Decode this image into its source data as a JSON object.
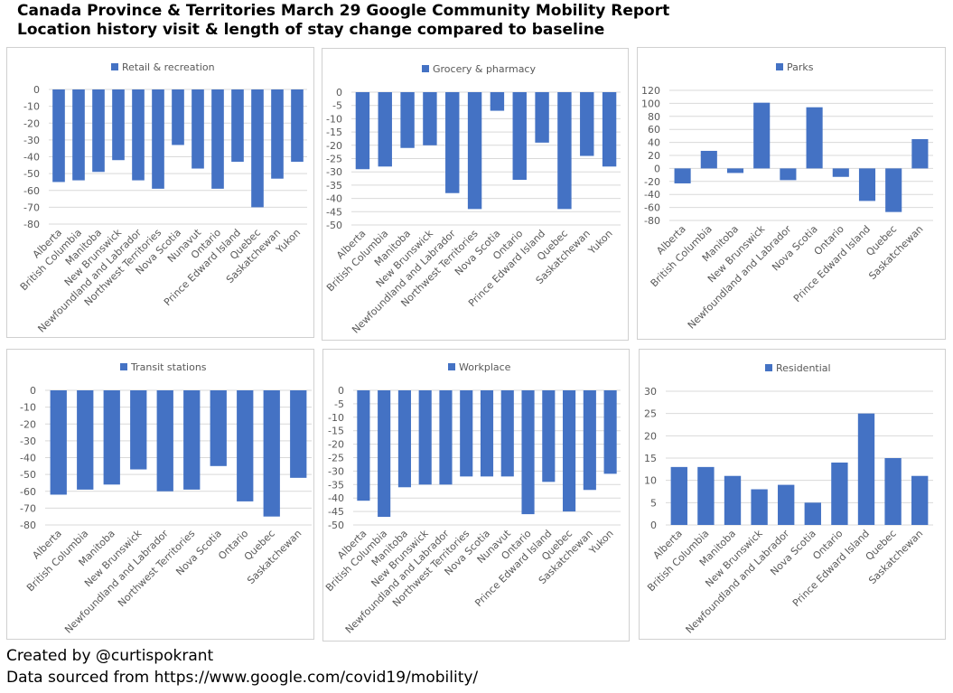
{
  "header": {
    "title_line1": "Canada Province & Territories March 29 Google Community Mobility Report",
    "title_line2": "Location history visit & length of stay change compared to baseline"
  },
  "footer": {
    "credit": "Created by @curtispokrant",
    "source": "Data sourced from https://www.google.com/covid19/mobility/"
  },
  "colors": {
    "bar": "#4472c4",
    "grid": "#d9d9d9",
    "text": "#595959",
    "border": "#d0d0d0"
  },
  "chart_data": [
    {
      "type": "bar",
      "title": "Retail & recreation",
      "legend": "top",
      "categories": [
        "Alberta",
        "British Columbia",
        "Manitoba",
        "New Brunswick",
        "Newfoundland and Labrador",
        "Northwest Territories",
        "Nova Scotia",
        "Nunavut",
        "Ontario",
        "Prince Edward Island",
        "Quebec",
        "Saskatchewan",
        "Yukon"
      ],
      "values": [
        -55,
        -54,
        -49,
        -42,
        -54,
        -59,
        -33,
        -47,
        -59,
        -43,
        -70,
        -53,
        -43
      ],
      "ylim": [
        -80,
        0
      ],
      "ticks": [
        0,
        -10,
        -20,
        -30,
        -40,
        -50,
        -60,
        -70,
        -80
      ],
      "tick_labels": [
        "0",
        "-10",
        "-20",
        "-30",
        "-40",
        "-50",
        "-60",
        "-70",
        "-80"
      ],
      "grid": true
    },
    {
      "type": "bar",
      "title": "Grocery & pharmacy",
      "legend": "top",
      "categories": [
        "Alberta",
        "British Columbia",
        "Manitoba",
        "New Brunswick",
        "Newfoundland and Labrador",
        "Northwest Territories",
        "Nova Scotia",
        "Ontario",
        "Prince Edward Island",
        "Quebec",
        "Saskatchewan",
        "Yukon"
      ],
      "values": [
        -29,
        -28,
        -21,
        -20,
        -38,
        -44,
        -7,
        -33,
        -19,
        -44,
        -24,
        -28
      ],
      "ylim": [
        -50,
        0
      ],
      "ticks": [
        0,
        -5,
        -10,
        -15,
        -20,
        -25,
        -30,
        -35,
        -40,
        -45,
        -50
      ],
      "tick_labels": [
        "0",
        "-5",
        "-10",
        "-15",
        "-20",
        "-25",
        "-30",
        "-35",
        "-40",
        "-45",
        "-50"
      ],
      "grid": true
    },
    {
      "type": "bar",
      "title": "Parks",
      "legend": "top",
      "categories": [
        "Alberta",
        "British Columbia",
        "Manitoba",
        "New Brunswick",
        "Newfoundland and Labrador",
        "Nova Scotia",
        "Ontario",
        "Prince Edward Island",
        "Quebec",
        "Saskatchewan"
      ],
      "values": [
        -23,
        27,
        -7,
        101,
        -18,
        94,
        -13,
        -50,
        -67,
        45
      ],
      "ylim": [
        -80,
        120
      ],
      "ticks": [
        120,
        100,
        80,
        60,
        40,
        20,
        0,
        -20,
        -40,
        -60,
        -80
      ],
      "tick_labels": [
        "120",
        "100",
        "80",
        "60",
        "40",
        "20",
        "0",
        "-20",
        "-40",
        "-60",
        "-80"
      ],
      "grid": true
    },
    {
      "type": "bar",
      "title": "Transit stations",
      "legend": "top",
      "categories": [
        "Alberta",
        "British Columbia",
        "Manitoba",
        "New Brunswick",
        "Newfoundland and Labrador",
        "Northwest Territories",
        "Nova Scotia",
        "Ontario",
        "Quebec",
        "Saskatchewan"
      ],
      "values": [
        -62,
        -59,
        -56,
        -47,
        -60,
        -59,
        -45,
        -66,
        -75,
        -52
      ],
      "ylim": [
        -80,
        0
      ],
      "ticks": [
        0,
        -10,
        -20,
        -30,
        -40,
        -50,
        -60,
        -70,
        -80
      ],
      "tick_labels": [
        "0",
        "-10",
        "-20",
        "-30",
        "-40",
        "-50",
        "-60",
        "-70",
        "-80"
      ],
      "grid": true
    },
    {
      "type": "bar",
      "title": "Workplace",
      "legend": "top",
      "categories": [
        "Alberta",
        "British Columbia",
        "Manitoba",
        "New Brunswick",
        "Newfoundland and Labrador",
        "Northwest Territories",
        "Nova Scotia",
        "Nunavut",
        "Ontario",
        "Prince Edward Island",
        "Quebec",
        "Saskatchewan",
        "Yukon"
      ],
      "values": [
        -41,
        -47,
        -36,
        -35,
        -35,
        -32,
        -32,
        -32,
        -46,
        -34,
        -45,
        -37,
        -31
      ],
      "ylim": [
        -50,
        0
      ],
      "ticks": [
        0,
        -5,
        -10,
        -15,
        -20,
        -25,
        -30,
        -35,
        -40,
        -45,
        -50
      ],
      "tick_labels": [
        "0",
        "-5",
        "-10",
        "-15",
        "-20",
        "-25",
        "-30",
        "-35",
        "-40",
        "-45",
        "-50"
      ],
      "grid": true
    },
    {
      "type": "bar",
      "title": "Residential",
      "legend": "top",
      "categories": [
        "Alberta",
        "British Columbia",
        "Manitoba",
        "New Brunswick",
        "Newfoundland and Labrador",
        "Nova Scotia",
        "Ontario",
        "Prince Edward Island",
        "Quebec",
        "Saskatchewan"
      ],
      "values": [
        13,
        13,
        11,
        8,
        9,
        5,
        14,
        25,
        15,
        11
      ],
      "ylim": [
        0,
        30
      ],
      "ticks": [
        30,
        25,
        20,
        15,
        10,
        5,
        0
      ],
      "tick_labels": [
        "30",
        "25",
        "20",
        "15",
        "10",
        "5",
        "0"
      ],
      "grid": true
    }
  ]
}
